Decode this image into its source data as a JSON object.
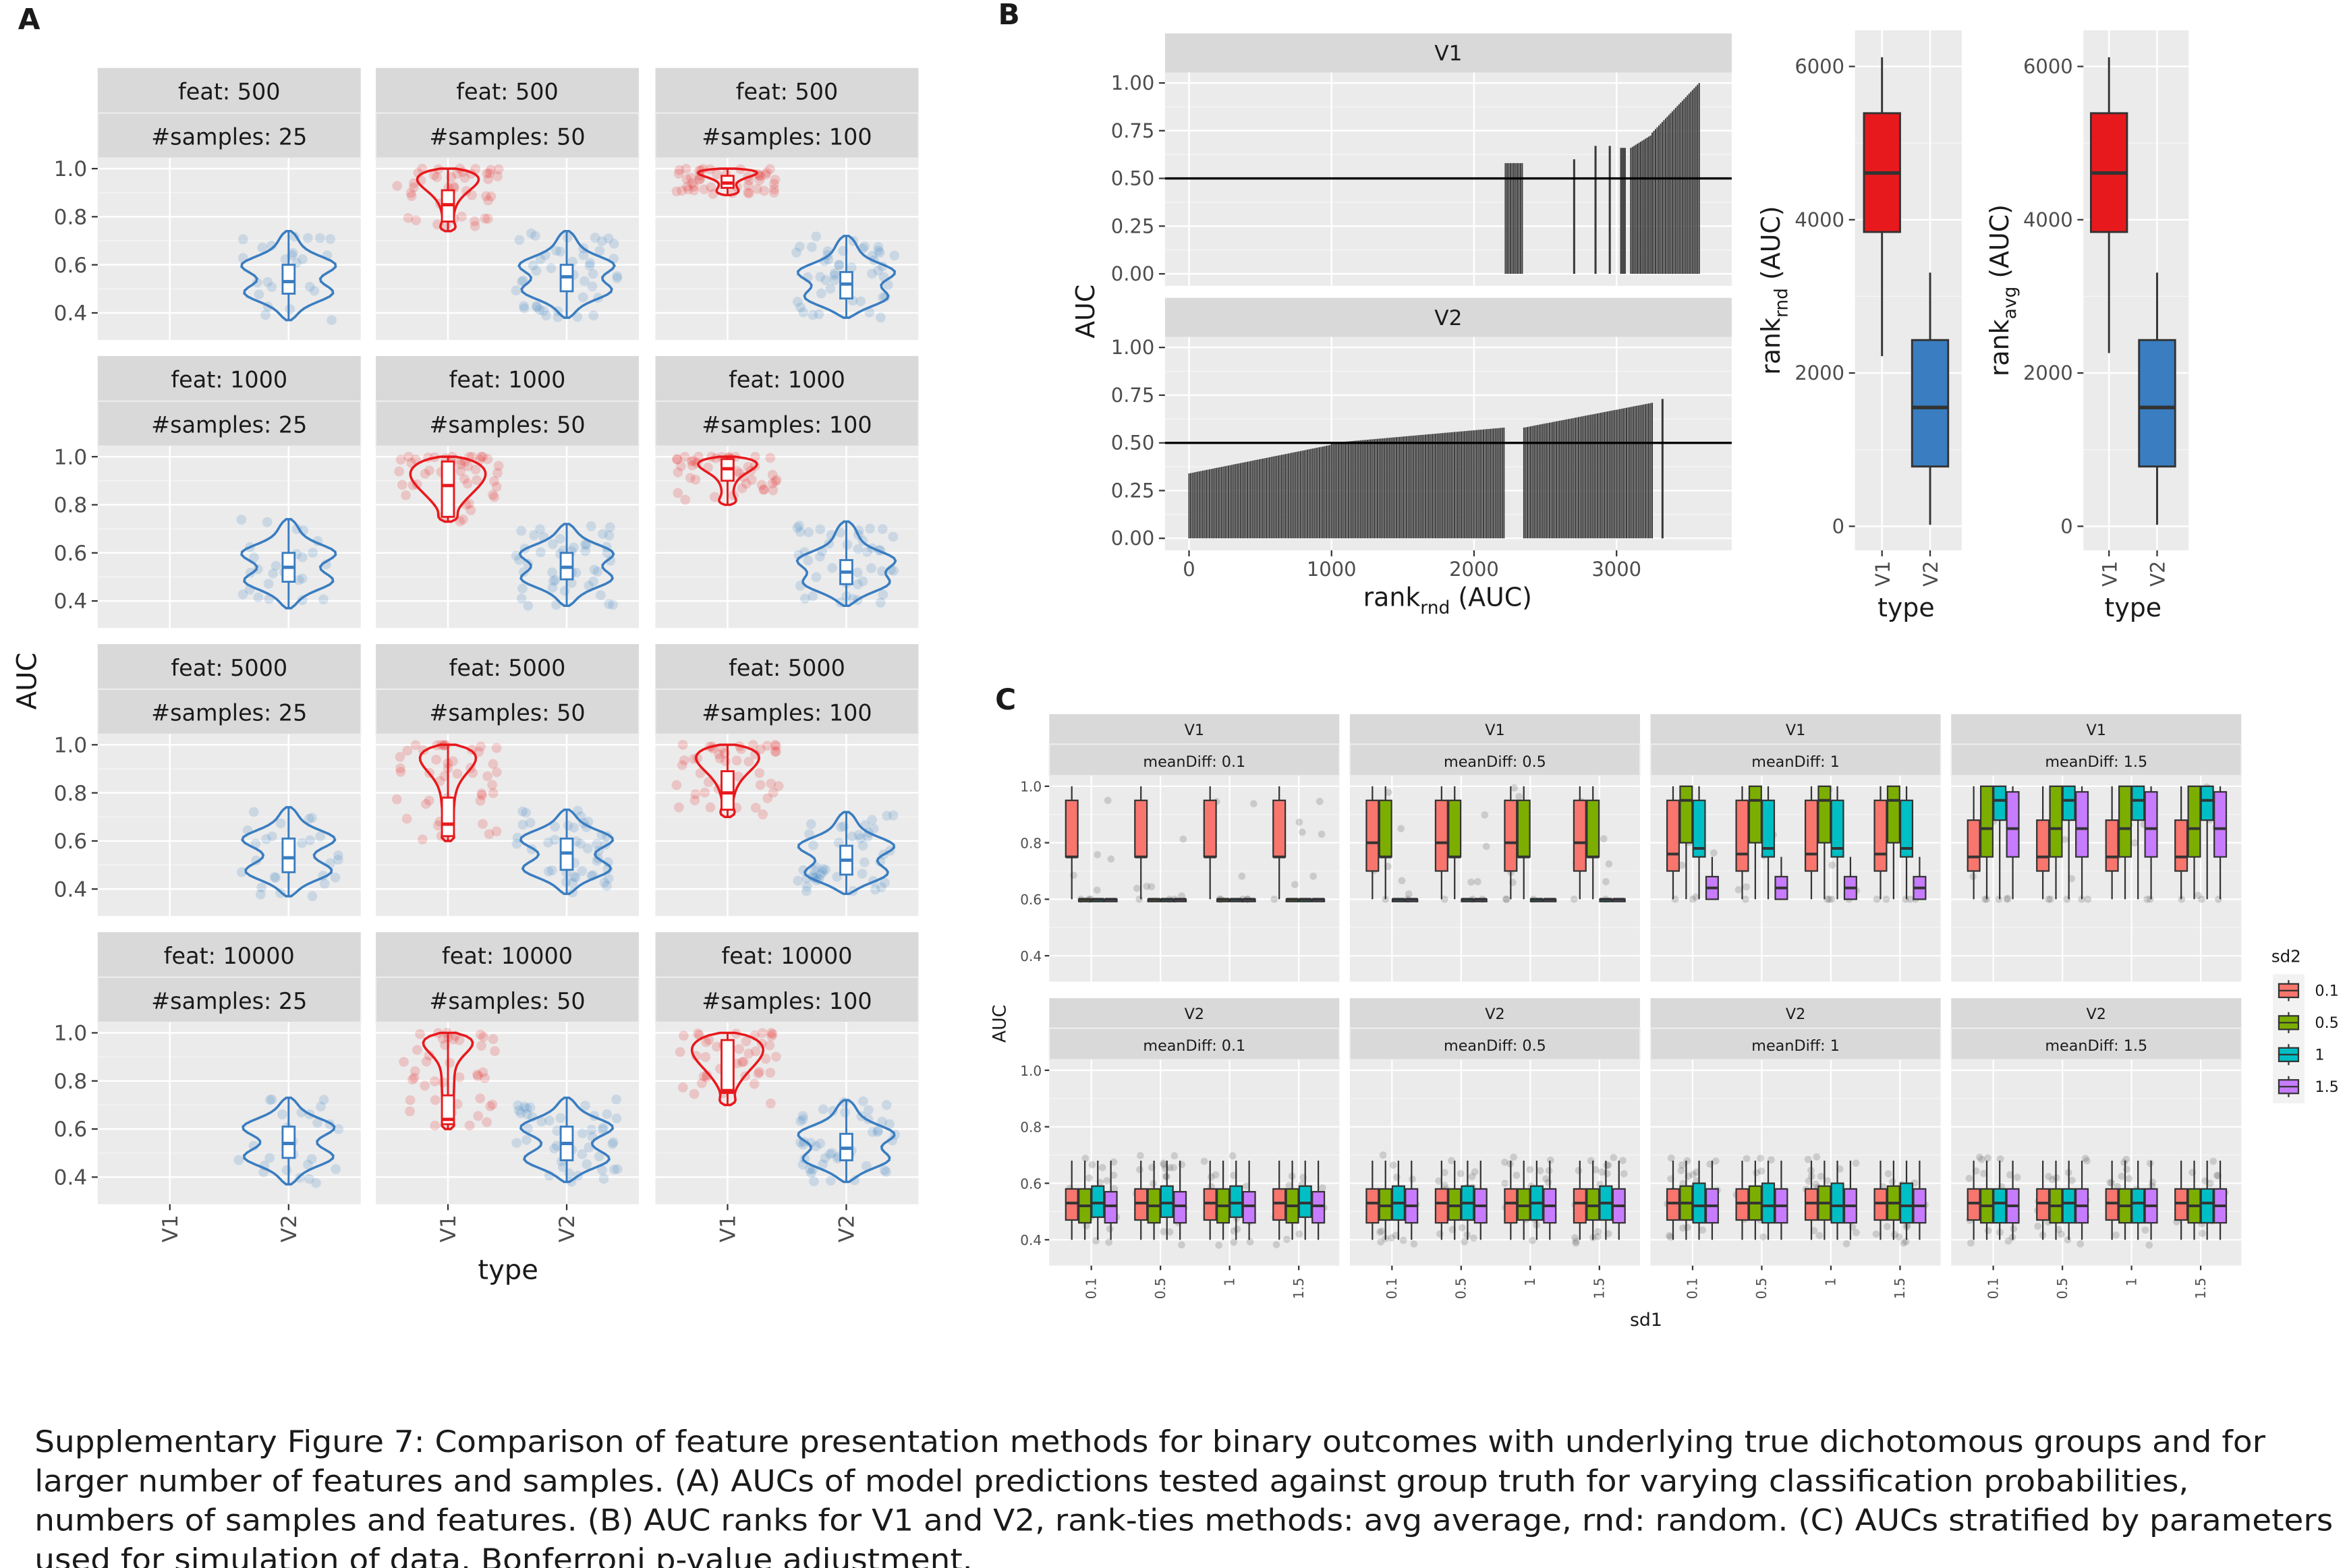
{
  "panel_labels": {
    "a": "A",
    "b": "B",
    "c": "C"
  },
  "colors": {
    "v1": "#e8191c",
    "v2": "#3a7dc0",
    "panel_bg": "#ebebeb",
    "strip_bg": "#d9d9d9",
    "bar": "#4d4d4d",
    "sd2_0.1": "#f8766d",
    "sd2_0.5": "#7cae00",
    "sd2_1": "#00bfc4",
    "sd2_1.5": "#c77cff"
  },
  "chart_data": [
    {
      "panel": "A",
      "type": "violin",
      "xlabel": "type",
      "ylabel": "AUC",
      "categories": [
        "V1",
        "V2"
      ],
      "yticks": [
        "0.4",
        "0.6",
        "0.8",
        "1.0"
      ],
      "ylim": [
        0.36,
        1.04
      ],
      "facet_rows": [
        "feat: 500",
        "feat: 1000",
        "feat: 5000",
        "feat: 10000"
      ],
      "facet_cols": [
        "#samples: 25",
        "#samples: 50",
        "#samples: 100"
      ],
      "note_stats_order": "min, q1, median, q3, max",
      "cells": [
        [
          {
            "n": 25,
            "V1": null,
            "V2": [
              0.37,
              0.48,
              0.53,
              0.6,
              0.74
            ]
          },
          {
            "n": 50,
            "V1": [
              0.74,
              0.78,
              0.85,
              0.91,
              1.0
            ],
            "V2": [
              0.38,
              0.49,
              0.55,
              0.6,
              0.74
            ]
          },
          {
            "n": 100,
            "V1": [
              0.89,
              0.92,
              0.94,
              0.97,
              1.0
            ],
            "V2": [
              0.38,
              0.46,
              0.52,
              0.57,
              0.72
            ]
          }
        ],
        [
          {
            "n": 25,
            "V1": null,
            "V2": [
              0.37,
              0.48,
              0.54,
              0.6,
              0.74
            ]
          },
          {
            "n": 50,
            "V1": [
              0.73,
              0.75,
              0.88,
              0.98,
              1.0
            ],
            "V2": [
              0.38,
              0.49,
              0.54,
              0.6,
              0.72
            ]
          },
          {
            "n": 100,
            "V1": [
              0.8,
              0.9,
              0.95,
              0.99,
              1.0
            ],
            "V2": [
              0.38,
              0.47,
              0.52,
              0.57,
              0.73
            ]
          }
        ],
        [
          {
            "n": 25,
            "V1": null,
            "V2": [
              0.37,
              0.47,
              0.53,
              0.61,
              0.74
            ]
          },
          {
            "n": 50,
            "V1": [
              0.6,
              0.62,
              0.67,
              0.78,
              1.0
            ],
            "V2": [
              0.38,
              0.48,
              0.55,
              0.61,
              0.73
            ]
          },
          {
            "n": 100,
            "V1": [
              0.7,
              0.73,
              0.8,
              0.89,
              1.0
            ],
            "V2": [
              0.38,
              0.46,
              0.52,
              0.58,
              0.72
            ]
          }
        ],
        [
          {
            "n": 25,
            "V1": null,
            "V2": [
              0.37,
              0.48,
              0.54,
              0.61,
              0.73
            ]
          },
          {
            "n": 50,
            "V1": [
              0.6,
              0.62,
              0.64,
              0.74,
              1.0
            ],
            "V2": [
              0.38,
              0.47,
              0.54,
              0.61,
              0.73
            ]
          },
          {
            "n": 100,
            "V1": [
              0.7,
              0.75,
              0.76,
              0.97,
              1.0
            ],
            "V2": [
              0.38,
              0.47,
              0.52,
              0.58,
              0.72
            ]
          }
        ]
      ]
    },
    {
      "panel": "B-left",
      "type": "bar",
      "ylabel": "AUC",
      "xlabel_main": "rank",
      "xlabel_sub": "rnd",
      "xlabel_tail": " (AUC)",
      "xticks": [
        0,
        1000,
        2000,
        3000
      ],
      "yticks": [
        "0.00",
        "0.25",
        "0.50",
        "0.75",
        "1.00"
      ],
      "xlim": [
        -170,
        3800
      ],
      "ylim": [
        0,
        1
      ],
      "hline": 0.5,
      "facets": [
        {
          "name": "V1",
          "segments": [
            {
              "from": 2220,
              "to": 2350,
              "auc": [
                0.58,
                0.58
              ]
            },
            {
              "from": 2700,
              "to": 2705,
              "auc": [
                0.6,
                0.6
              ]
            },
            {
              "from": 2850,
              "to": 2855,
              "auc": [
                0.67,
                0.67
              ]
            },
            {
              "from": 2950,
              "to": 2955,
              "auc": [
                0.67,
                0.67
              ]
            },
            {
              "from": 3030,
              "to": 3060,
              "auc": [
                0.66,
                0.66
              ]
            },
            {
              "from": 3100,
              "to": 3250,
              "auc": [
                0.66,
                0.73
              ]
            },
            {
              "from": 3250,
              "to": 3580,
              "auc": [
                0.74,
                1.0
              ]
            }
          ]
        },
        {
          "name": "V2",
          "segments": [
            {
              "from": 0,
              "to": 1000,
              "auc": [
                0.34,
                0.49
              ]
            },
            {
              "from": 1000,
              "to": 2210,
              "auc": [
                0.5,
                0.58
              ]
            },
            {
              "from": 2350,
              "to": 3250,
              "auc": [
                0.58,
                0.71
              ]
            },
            {
              "from": 3320,
              "to": 3325,
              "auc": [
                0.73,
                0.73
              ]
            }
          ]
        }
      ]
    },
    {
      "panel": "B-mid",
      "type": "box",
      "ylabel_main": "rank",
      "ylabel_sub": "rnd",
      "ylabel_tail": " (AUC)",
      "xlabel": "type",
      "categories": [
        "V1",
        "V2"
      ],
      "yticks": [
        0,
        2000,
        4000,
        6000
      ],
      "ylim": [
        -300,
        6450
      ],
      "boxes": [
        [
          2220,
          3840,
          4610,
          5390,
          6120
        ],
        [
          20,
          780,
          1550,
          2430,
          3310
        ]
      ]
    },
    {
      "panel": "B-right",
      "type": "box",
      "ylabel_main": "rank",
      "ylabel_sub": "avg",
      "ylabel_tail": " (AUC)",
      "xlabel": "type",
      "categories": [
        "V1",
        "V2"
      ],
      "yticks": [
        0,
        2000,
        4000,
        6000
      ],
      "ylim": [
        -300,
        6450
      ],
      "boxes": [
        [
          2260,
          3840,
          4610,
          5390,
          6120
        ],
        [
          20,
          780,
          1550,
          2430,
          3310
        ]
      ]
    },
    {
      "panel": "C",
      "type": "box",
      "xlabel": "sd1",
      "ylabel": "AUC",
      "xticks": [
        "0.1",
        "0.5",
        "1",
        "1.5"
      ],
      "yticks": [
        "0.4",
        "0.6",
        "0.8",
        "1.0"
      ],
      "ylim": [
        0.37,
        1.04
      ],
      "legend": {
        "title": "sd2",
        "entries": [
          "0.1",
          "0.5",
          "1",
          "1.5"
        ],
        "position": "right"
      },
      "note_stats_order": "low whisker, q1, median, q3, high whisker",
      "facet_rows": [
        "V1",
        "V2"
      ],
      "facet_cols": [
        "meanDiff: 0.1",
        "meanDiff: 0.5",
        "meanDiff: 1",
        "meanDiff: 1.5"
      ],
      "boxes": [
        [
          [
            [
              0.6,
              0.75,
              0.75,
              0.95,
              1.0
            ],
            [
              0.6,
              0.6,
              0.6,
              0.6,
              0.6
            ],
            [
              0.6,
              0.6,
              0.6,
              0.6,
              0.6
            ],
            [
              0.6,
              0.6,
              0.6,
              0.6,
              0.6
            ]
          ],
          [
            [
              0.6,
              0.7,
              0.8,
              0.95,
              1.0
            ],
            [
              0.6,
              0.75,
              0.75,
              0.95,
              1.0
            ],
            [
              0.6,
              0.6,
              0.6,
              0.6,
              0.6
            ],
            [
              0.6,
              0.6,
              0.6,
              0.6,
              0.6
            ]
          ],
          [
            [
              0.6,
              0.7,
              0.76,
              0.95,
              1.0
            ],
            [
              0.6,
              0.8,
              0.95,
              1.0,
              1.0
            ],
            [
              0.6,
              0.75,
              0.78,
              0.95,
              1.0
            ],
            [
              0.6,
              0.6,
              0.64,
              0.68,
              0.75
            ]
          ],
          [
            [
              0.6,
              0.7,
              0.75,
              0.88,
              1.0
            ],
            [
              0.6,
              0.75,
              0.85,
              1.0,
              1.0
            ],
            [
              0.6,
              0.88,
              0.95,
              1.0,
              1.0
            ],
            [
              0.6,
              0.75,
              0.85,
              0.98,
              1.0
            ]
          ]
        ],
        [
          [
            [
              0.4,
              0.47,
              0.53,
              0.58,
              0.68
            ],
            [
              0.4,
              0.46,
              0.52,
              0.58,
              0.68
            ],
            [
              0.4,
              0.48,
              0.53,
              0.59,
              0.68
            ],
            [
              0.4,
              0.46,
              0.52,
              0.57,
              0.68
            ]
          ],
          [
            [
              0.4,
              0.46,
              0.53,
              0.58,
              0.68
            ],
            [
              0.4,
              0.47,
              0.52,
              0.58,
              0.68
            ],
            [
              0.4,
              0.47,
              0.53,
              0.59,
              0.68
            ],
            [
              0.4,
              0.46,
              0.52,
              0.58,
              0.68
            ]
          ],
          [
            [
              0.4,
              0.47,
              0.53,
              0.58,
              0.68
            ],
            [
              0.4,
              0.47,
              0.53,
              0.59,
              0.68
            ],
            [
              0.4,
              0.46,
              0.52,
              0.6,
              0.68
            ],
            [
              0.4,
              0.46,
              0.52,
              0.58,
              0.68
            ]
          ],
          [
            [
              0.4,
              0.47,
              0.53,
              0.58,
              0.68
            ],
            [
              0.4,
              0.46,
              0.52,
              0.58,
              0.68
            ],
            [
              0.4,
              0.46,
              0.53,
              0.58,
              0.68
            ],
            [
              0.4,
              0.46,
              0.52,
              0.58,
              0.68
            ]
          ]
        ]
      ]
    }
  ],
  "caption": {
    "lines": [
      "Supplementary Figure 7: Comparison of feature presentation methods for binary outcomes with underlying true dichotomous groups and for",
      "larger number of features and samples. (A) AUCs of model predictions tested against group truth for varying classification probabilities,",
      "numbers of samples and features. (B) AUC ranks for V1 and V2, rank-ties methods: avg average, rnd: random. (C) AUCs stratified by parameters",
      "used for simulation of data. Bonferroni p-value adjustment."
    ]
  }
}
